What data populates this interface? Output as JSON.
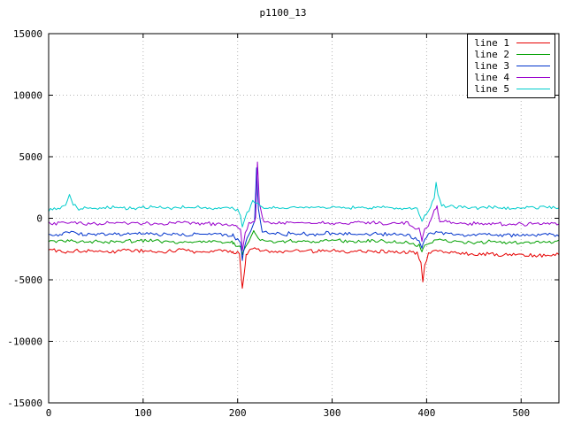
{
  "window": {
    "background": "#ffffff",
    "border_color": "#000000",
    "text_color": "#000000",
    "grid_color": "#b4b4b4"
  },
  "chart_data": {
    "type": "line",
    "title": "p1100_13",
    "xlabel": "",
    "ylabel": "",
    "xlim": [
      0,
      540
    ],
    "ylim": [
      -15000,
      15000
    ],
    "x_ticks": [
      0,
      100,
      200,
      300,
      400,
      500
    ],
    "y_ticks": [
      -15000,
      -10000,
      -5000,
      0,
      5000,
      10000,
      15000
    ],
    "grid": true,
    "legend_position": "top-right-inside",
    "legend_box": true,
    "noise_step": 2,
    "series": [
      {
        "name": "line 1",
        "color": "#e60000",
        "baseline": -2700,
        "noise_amp": 200,
        "seed": 101,
        "keypoints": [
          [
            0,
            -2550
          ],
          [
            20,
            -2700
          ],
          [
            40,
            -2600
          ],
          [
            60,
            -2750
          ],
          [
            80,
            -2600
          ],
          [
            100,
            -2650
          ],
          [
            120,
            -2750
          ],
          [
            140,
            -2600
          ],
          [
            160,
            -2700
          ],
          [
            180,
            -2650
          ],
          [
            195,
            -2750
          ],
          [
            202,
            -2900
          ],
          [
            205,
            -5800
          ],
          [
            207,
            -4400
          ],
          [
            209,
            -3000
          ],
          [
            213,
            -2500
          ],
          [
            218,
            -2350
          ],
          [
            224,
            -2650
          ],
          [
            240,
            -2700
          ],
          [
            260,
            -2650
          ],
          [
            280,
            -2700
          ],
          [
            300,
            -2600
          ],
          [
            320,
            -2700
          ],
          [
            340,
            -2650
          ],
          [
            360,
            -2700
          ],
          [
            380,
            -2750
          ],
          [
            390,
            -2850
          ],
          [
            394,
            -3600
          ],
          [
            396,
            -5000
          ],
          [
            398,
            -3800
          ],
          [
            402,
            -2900
          ],
          [
            408,
            -2600
          ],
          [
            420,
            -2750
          ],
          [
            440,
            -2850
          ],
          [
            460,
            -2900
          ],
          [
            480,
            -2950
          ],
          [
            500,
            -2950
          ],
          [
            520,
            -3000
          ],
          [
            540,
            -2950
          ]
        ]
      },
      {
        "name": "line 2",
        "color": "#00a000",
        "baseline": -1900,
        "noise_amp": 180,
        "seed": 102,
        "keypoints": [
          [
            0,
            -1950
          ],
          [
            20,
            -1850
          ],
          [
            40,
            -1900
          ],
          [
            60,
            -1950
          ],
          [
            80,
            -1850
          ],
          [
            100,
            -1800
          ],
          [
            120,
            -1900
          ],
          [
            140,
            -1950
          ],
          [
            160,
            -1850
          ],
          [
            180,
            -1900
          ],
          [
            195,
            -2000
          ],
          [
            203,
            -2300
          ],
          [
            205,
            -2900
          ],
          [
            208,
            -2200
          ],
          [
            212,
            -1900
          ],
          [
            217,
            -1000
          ],
          [
            220,
            -1400
          ],
          [
            224,
            -1800
          ],
          [
            240,
            -1900
          ],
          [
            260,
            -1850
          ],
          [
            280,
            -1900
          ],
          [
            300,
            -1800
          ],
          [
            320,
            -1900
          ],
          [
            340,
            -1850
          ],
          [
            360,
            -1900
          ],
          [
            380,
            -1950
          ],
          [
            392,
            -2200
          ],
          [
            395,
            -2700
          ],
          [
            398,
            -2100
          ],
          [
            404,
            -1900
          ],
          [
            410,
            -1750
          ],
          [
            430,
            -1900
          ],
          [
            450,
            -1950
          ],
          [
            470,
            -1900
          ],
          [
            490,
            -2000
          ],
          [
            510,
            -1950
          ],
          [
            540,
            -1900
          ]
        ]
      },
      {
        "name": "line 3",
        "color": "#0033cc",
        "baseline": -1300,
        "noise_amp": 190,
        "seed": 103,
        "keypoints": [
          [
            0,
            -1350
          ],
          [
            15,
            -1250
          ],
          [
            25,
            -1050
          ],
          [
            35,
            -1300
          ],
          [
            60,
            -1250
          ],
          [
            80,
            -1350
          ],
          [
            100,
            -1250
          ],
          [
            120,
            -1300
          ],
          [
            140,
            -1350
          ],
          [
            160,
            -1250
          ],
          [
            180,
            -1300
          ],
          [
            195,
            -1400
          ],
          [
            203,
            -1900
          ],
          [
            205,
            -3400
          ],
          [
            208,
            -2000
          ],
          [
            212,
            -1400
          ],
          [
            218,
            -300
          ],
          [
            220,
            4200
          ],
          [
            222,
            800
          ],
          [
            226,
            -1100
          ],
          [
            240,
            -1300
          ],
          [
            260,
            -1250
          ],
          [
            280,
            -1300
          ],
          [
            300,
            -1200
          ],
          [
            320,
            -1300
          ],
          [
            340,
            -1250
          ],
          [
            360,
            -1300
          ],
          [
            380,
            -1350
          ],
          [
            392,
            -1800
          ],
          [
            395,
            -2500
          ],
          [
            398,
            -1700
          ],
          [
            404,
            -1300
          ],
          [
            412,
            -1100
          ],
          [
            430,
            -1300
          ],
          [
            450,
            -1350
          ],
          [
            470,
            -1300
          ],
          [
            490,
            -1400
          ],
          [
            510,
            -1350
          ],
          [
            540,
            -1300
          ]
        ]
      },
      {
        "name": "line 4",
        "color": "#9900cc",
        "baseline": -400,
        "noise_amp": 180,
        "seed": 104,
        "keypoints": [
          [
            0,
            -450
          ],
          [
            20,
            -350
          ],
          [
            40,
            -450
          ],
          [
            60,
            -400
          ],
          [
            80,
            -350
          ],
          [
            100,
            -400
          ],
          [
            120,
            -450
          ],
          [
            140,
            -350
          ],
          [
            160,
            -400
          ],
          [
            180,
            -450
          ],
          [
            195,
            -500
          ],
          [
            203,
            -900
          ],
          [
            205,
            -2600
          ],
          [
            208,
            -1200
          ],
          [
            212,
            -500
          ],
          [
            219,
            -100
          ],
          [
            221,
            4700
          ],
          [
            223,
            1200
          ],
          [
            227,
            -300
          ],
          [
            240,
            -400
          ],
          [
            260,
            -350
          ],
          [
            280,
            -400
          ],
          [
            300,
            -350
          ],
          [
            320,
            -400
          ],
          [
            340,
            -350
          ],
          [
            360,
            -400
          ],
          [
            380,
            -450
          ],
          [
            392,
            -900
          ],
          [
            395,
            -1800
          ],
          [
            398,
            -900
          ],
          [
            403,
            -400
          ],
          [
            408,
            600
          ],
          [
            411,
            900
          ],
          [
            414,
            -200
          ],
          [
            430,
            -400
          ],
          [
            450,
            -450
          ],
          [
            470,
            -400
          ],
          [
            490,
            -500
          ],
          [
            510,
            -450
          ],
          [
            540,
            -400
          ]
        ]
      },
      {
        "name": "line 5",
        "color": "#00cccc",
        "baseline": 800,
        "noise_amp": 180,
        "seed": 105,
        "keypoints": [
          [
            0,
            650
          ],
          [
            10,
            750
          ],
          [
            18,
            900
          ],
          [
            22,
            2000
          ],
          [
            26,
            1100
          ],
          [
            32,
            800
          ],
          [
            50,
            800
          ],
          [
            70,
            900
          ],
          [
            90,
            850
          ],
          [
            110,
            900
          ],
          [
            130,
            850
          ],
          [
            150,
            900
          ],
          [
            170,
            850
          ],
          [
            190,
            800
          ],
          [
            200,
            750
          ],
          [
            203,
            200
          ],
          [
            205,
            -700
          ],
          [
            208,
            100
          ],
          [
            212,
            700
          ],
          [
            216,
            1400
          ],
          [
            220,
            1100
          ],
          [
            226,
            900
          ],
          [
            240,
            850
          ],
          [
            260,
            900
          ],
          [
            280,
            850
          ],
          [
            300,
            900
          ],
          [
            320,
            850
          ],
          [
            340,
            900
          ],
          [
            360,
            850
          ],
          [
            380,
            800
          ],
          [
            390,
            700
          ],
          [
            395,
            -200
          ],
          [
            399,
            300
          ],
          [
            404,
            800
          ],
          [
            408,
            1800
          ],
          [
            410,
            3000
          ],
          [
            412,
            1900
          ],
          [
            416,
            1000
          ],
          [
            430,
            900
          ],
          [
            450,
            850
          ],
          [
            470,
            900
          ],
          [
            490,
            800
          ],
          [
            510,
            850
          ],
          [
            540,
            850
          ]
        ]
      }
    ]
  }
}
